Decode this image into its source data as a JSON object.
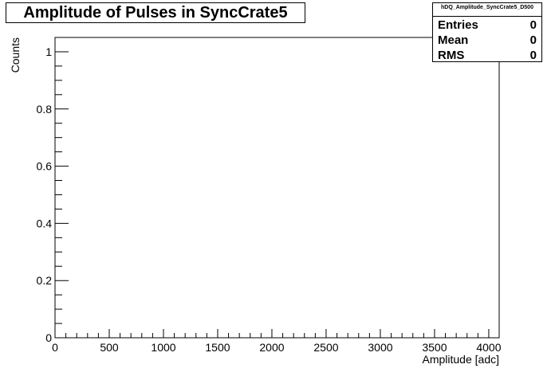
{
  "chart_data": {
    "type": "bar",
    "title": "Amplitude of Pulses in SyncCrate5",
    "xlabel": "Amplitude [adc]",
    "ylabel": "Counts",
    "xlim": [
      0,
      4096
    ],
    "ylim": [
      0,
      1.05
    ],
    "x_ticks": [
      0,
      500,
      1000,
      1500,
      2000,
      2500,
      3000,
      3500,
      4000
    ],
    "y_ticks": [
      0,
      0.2,
      0.4,
      0.6,
      0.8,
      1
    ],
    "y_tick_labels": [
      "0",
      "0.2",
      "0.4",
      "0.6",
      "0.8",
      "1"
    ],
    "series": [
      {
        "values": []
      }
    ],
    "stats": {
      "name": "hDQ_Amplitude_SyncCrate5_D500",
      "rows": [
        {
          "label": "Entries",
          "value": "0"
        },
        {
          "label": "Mean",
          "value": "0"
        },
        {
          "label": "RMS",
          "value": "0"
        }
      ]
    }
  }
}
